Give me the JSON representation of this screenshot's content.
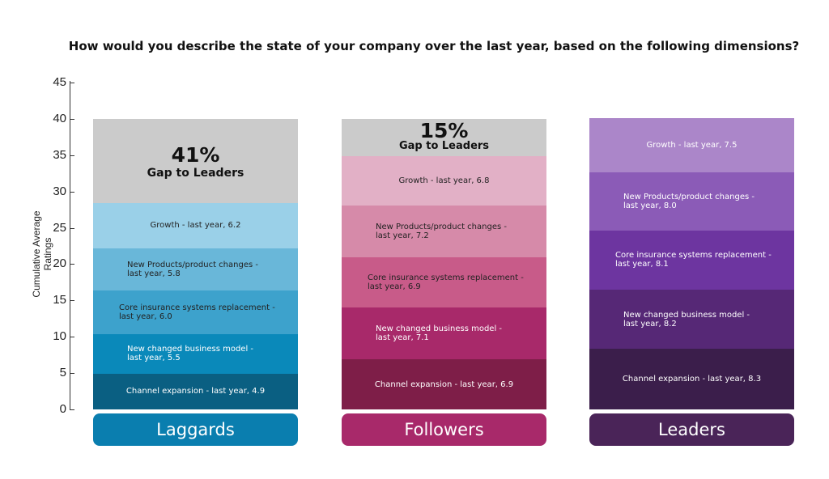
{
  "chart_data": {
    "type": "bar",
    "stacked": true,
    "title": "How would you describe the state of your company over the last year, based on the following dimensions?",
    "ylabel": "Cumulative Average Ratings",
    "ylim": [
      0,
      45
    ],
    "yticks": [
      0,
      5,
      10,
      15,
      20,
      25,
      30,
      35,
      40,
      45
    ],
    "categories": [
      "Laggards",
      "Followers",
      "Leaders"
    ],
    "category_colors": [
      "#0a7eaf",
      "#a8296a",
      "#4a2458"
    ],
    "series": [
      {
        "name": "Channel expansion",
        "values": [
          4.9,
          6.9,
          8.3
        ]
      },
      {
        "name": "New changed business model",
        "values": [
          5.5,
          7.1,
          8.2
        ]
      },
      {
        "name": "Core insurance systems replacement",
        "values": [
          6.0,
          6.9,
          8.1
        ]
      },
      {
        "name": "New Products/product changes",
        "values": [
          5.8,
          7.2,
          8.0
        ]
      },
      {
        "name": "Growth",
        "values": [
          6.2,
          6.8,
          7.5
        ]
      }
    ],
    "gap_to_leaders": {
      "values": [
        "41%",
        "15%",
        ""
      ],
      "label": "Gap to Leaders",
      "fill_to": 40,
      "color": "#cbcbcb"
    },
    "bars": [
      {
        "category": "Laggards",
        "segments": [
          {
            "line1": "Channel expansion - last year, 4.9",
            "line2": "",
            "value": 4.9,
            "color": "#0a5f82",
            "align": "center"
          },
          {
            "line1": "New changed business model -",
            "line2": "last year, 5.5",
            "value": 5.5,
            "color": "#0a89ba",
            "align": "left"
          },
          {
            "line1": "Core insurance systems replacement -",
            "line2": "last year, 6.0",
            "value": 6.0,
            "color": "#3da2cc",
            "align": "left"
          },
          {
            "line1": "New Products/product changes -",
            "line2": "last year, 5.8",
            "value": 5.8,
            "color": "#69b7d9",
            "align": "left"
          },
          {
            "line1": "Growth - last year, 6.2",
            "line2": "",
            "value": 6.2,
            "color": "#9ad0e8",
            "align": "center"
          }
        ]
      },
      {
        "category": "Followers",
        "segments": [
          {
            "line1": "Channel expansion - last year, 6.9",
            "line2": "",
            "value": 6.9,
            "color": "#7e1e48",
            "align": "center"
          },
          {
            "line1": "New changed business model -",
            "line2": "last year, 7.1",
            "value": 7.1,
            "color": "#a8296a",
            "align": "left"
          },
          {
            "line1": "Core insurance systems replacement -",
            "line2": "last year, 6.9",
            "value": 6.9,
            "color": "#c85b89",
            "align": "left"
          },
          {
            "line1": "New Products/product changes -",
            "line2": "last year, 7.2",
            "value": 7.2,
            "color": "#d68aa9",
            "align": "left"
          },
          {
            "line1": "Growth - last year, 6.8",
            "line2": "",
            "value": 6.8,
            "color": "#e2b0c6",
            "align": "center"
          }
        ]
      },
      {
        "category": "Leaders",
        "segments": [
          {
            "line1": "Channel expansion - last year, 8.3",
            "line2": "",
            "value": 8.3,
            "color": "#3b1e4b",
            "align": "center"
          },
          {
            "line1": "New changed business model -",
            "line2": "last year, 8.2",
            "value": 8.2,
            "color": "#562876",
            "align": "left"
          },
          {
            "line1": "Core insurance systems replacement -",
            "line2": "last year, 8.1",
            "value": 8.1,
            "color": "#6d35a0",
            "align": "left"
          },
          {
            "line1": "New Products/product changes -",
            "line2": "last year, 8.0",
            "value": 8.0,
            "color": "#8b5bb7",
            "align": "left"
          },
          {
            "line1": "Growth - last year, 7.5",
            "line2": "",
            "value": 7.5,
            "color": "#ab86c9",
            "align": "center"
          }
        ]
      }
    ]
  }
}
